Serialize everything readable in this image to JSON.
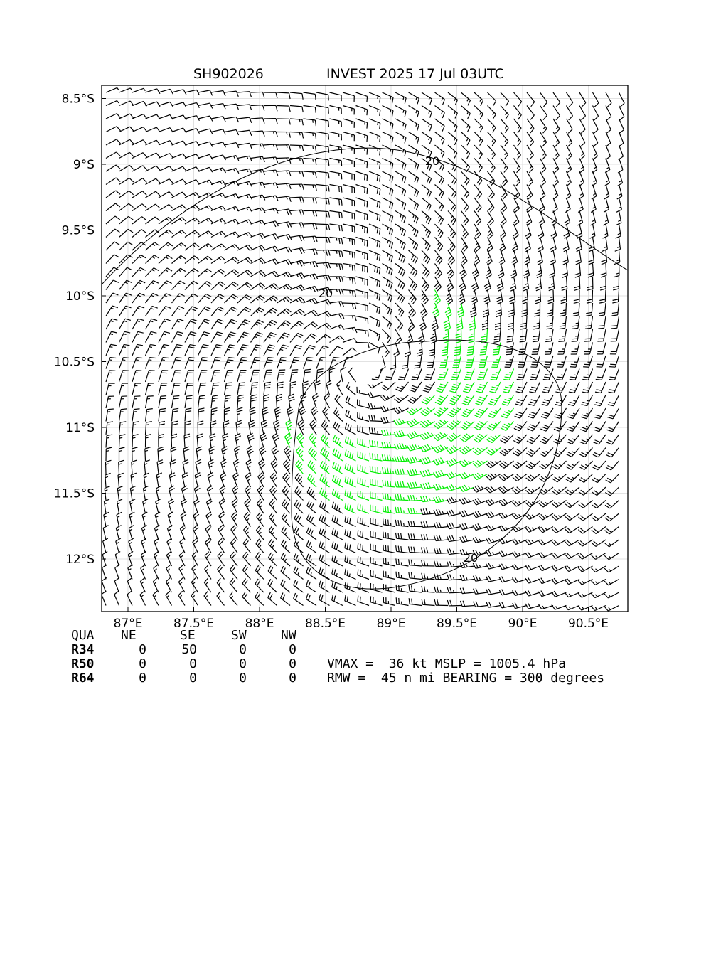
{
  "header": {
    "storm_id": "SH902026",
    "title": "INVEST 2025 17 Jul 03UTC"
  },
  "chart_data": {
    "type": "wind_barb_map",
    "x_ticks": [
      {
        "lon": 87.0,
        "label": "87°E"
      },
      {
        "lon": 87.5,
        "label": "87.5°E"
      },
      {
        "lon": 88.0,
        "label": "88°E"
      },
      {
        "lon": 88.5,
        "label": "88.5°E"
      },
      {
        "lon": 89.0,
        "label": "89°E"
      },
      {
        "lon": 89.5,
        "label": "89.5°E"
      },
      {
        "lon": 90.0,
        "label": "90°E"
      },
      {
        "lon": 90.5,
        "label": "90.5°E"
      }
    ],
    "y_ticks": [
      {
        "lat": -8.5,
        "label": "8.5°S"
      },
      {
        "lat": -9.0,
        "label": "9°S"
      },
      {
        "lat": -9.5,
        "label": "9.5°S"
      },
      {
        "lat": -10.0,
        "label": "10°S"
      },
      {
        "lat": -10.5,
        "label": "10.5°S"
      },
      {
        "lat": -11.0,
        "label": "11°S"
      },
      {
        "lat": -11.5,
        "label": "11.5°S"
      },
      {
        "lat": -12.0,
        "label": "12°S"
      }
    ],
    "xlim": [
      86.8,
      90.8
    ],
    "ylim": [
      -12.4,
      -8.4
    ],
    "grid": true,
    "center": {
      "lon": 88.8,
      "lat": -10.55
    },
    "vmax_kt": 36,
    "rmw_nmi": 45,
    "bearing_deg": 300,
    "barb_colors": {
      "below_34kt": "#000000",
      "34_to_49kt": "#00ee00",
      "50kt_plus": "#f0b000"
    },
    "contour": {
      "level": 20,
      "labels": [
        "20",
        "20",
        "20"
      ]
    }
  },
  "table": {
    "headers": [
      "QUA",
      "NE",
      "SE",
      "SW",
      "NW"
    ],
    "rows": [
      {
        "label": "R34",
        "values": [
          "0",
          "50",
          "0",
          "0"
        ]
      },
      {
        "label": "R50",
        "values": [
          "0",
          "0",
          "0",
          "0"
        ]
      },
      {
        "label": "R64",
        "values": [
          "0",
          "0",
          "0",
          "0"
        ]
      }
    ]
  },
  "stats": {
    "line1": "VMAX =  36 kt MSLP = 1005.4 hPa",
    "line2": "RMW =  45 n mi BEARING = 300 degrees"
  }
}
